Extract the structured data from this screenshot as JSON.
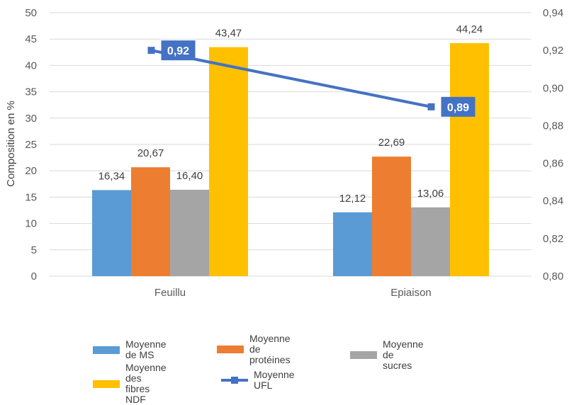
{
  "chart_data": {
    "type": "bar",
    "categories": [
      "Feuillu",
      "Epiaison"
    ],
    "series": [
      {
        "name": "Moyenne de MS",
        "values": [
          16.34,
          12.12
        ],
        "labels": [
          "16,34",
          "12,12"
        ],
        "color": "#5b9bd5",
        "axis": "left"
      },
      {
        "name": "Moyenne\nde protéines",
        "values": [
          20.67,
          22.69
        ],
        "labels": [
          "20,67",
          "22,69"
        ],
        "color": "#ed7d31",
        "axis": "left"
      },
      {
        "name": "Moyenne de sucres",
        "values": [
          16.4,
          13.06
        ],
        "labels": [
          "16,40",
          "13,06"
        ],
        "color": "#a5a5a5",
        "axis": "left"
      },
      {
        "name": "Moyenne\ndes fibres NDF",
        "values": [
          43.47,
          44.24
        ],
        "labels": [
          "43,47",
          "44,24"
        ],
        "color": "#ffc000",
        "axis": "left"
      }
    ],
    "line_series": {
      "name": "Moyenne UFL",
      "type": "line",
      "values": [
        0.92,
        0.89
      ],
      "labels": [
        "0,92",
        "0,89"
      ],
      "color": "#4472c4",
      "axis": "right"
    },
    "ylabel": "Composition en %",
    "ylim": [
      0,
      50
    ],
    "yticks": [
      "0",
      "5",
      "10",
      "15",
      "20",
      "25",
      "30",
      "35",
      "40",
      "45",
      "50"
    ],
    "y2lim": [
      0.8,
      0.94
    ],
    "y2ticks": [
      "0,80",
      "0,82",
      "0,84",
      "0,86",
      "0,88",
      "0,90",
      "0,92",
      "0,94"
    ],
    "grid": true,
    "legend_position": "bottom"
  }
}
